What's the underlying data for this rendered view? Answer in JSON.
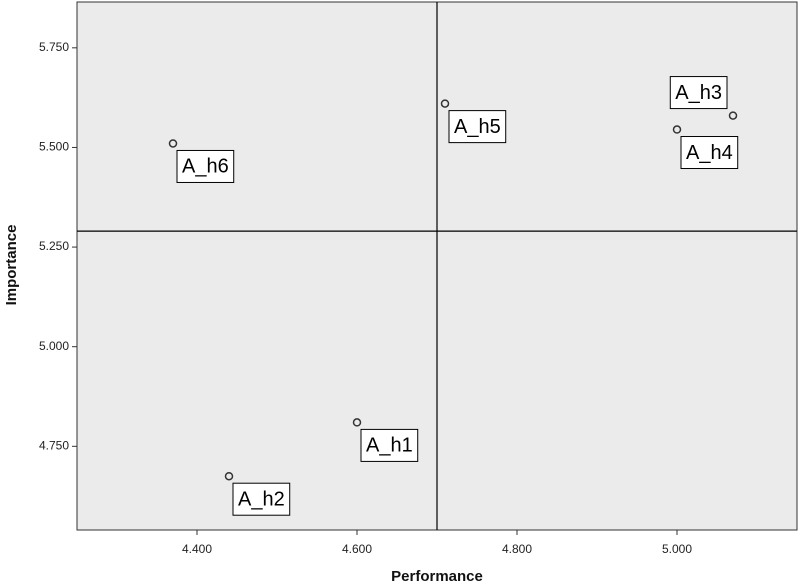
{
  "chart_data": {
    "type": "scatter",
    "x_label": "Performance",
    "y_label": "Importance",
    "point_labels": [
      "A_h1",
      "A_h2",
      "A_h3",
      "A_h4",
      "A_h5",
      "A_h6"
    ],
    "x": [
      4.6,
      4.44,
      5.07,
      5.0,
      4.71,
      4.37
    ],
    "values": [
      4.81,
      4.675,
      5.58,
      5.545,
      5.61,
      5.51
    ],
    "xlim": [
      4.25,
      5.15
    ],
    "ylim": [
      4.54,
      5.865
    ],
    "xticks": [
      {
        "value": 4.4,
        "label": "4.400"
      },
      {
        "value": 4.6,
        "label": "4.600"
      },
      {
        "value": 4.8,
        "label": "4.800"
      },
      {
        "value": 5.0,
        "label": "5.000"
      }
    ],
    "yticks": [
      {
        "value": 4.75,
        "label": "4.750"
      },
      {
        "value": 5.0,
        "label": "5.000"
      },
      {
        "value": 5.25,
        "label": "5.250"
      },
      {
        "value": 5.5,
        "label": "5.500"
      },
      {
        "value": 5.75,
        "label": "5.750"
      }
    ],
    "reference_lines": {
      "x": 4.7,
      "y": 5.29
    },
    "color": "#333333",
    "background": "#ebebeb"
  }
}
